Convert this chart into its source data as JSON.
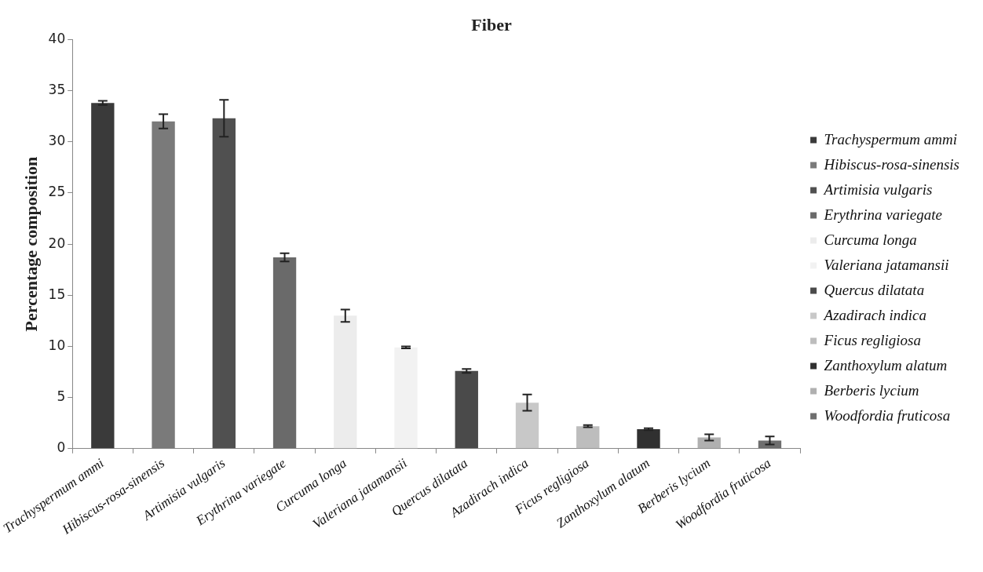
{
  "chart_data": {
    "type": "bar",
    "title": "Fiber",
    "ylabel": "Percentage composition",
    "categories": [
      "Trachyspermum ammi",
      "Hibiscus-rosa-sinensis",
      "Artimisia vulgaris",
      "Erythrina variegate",
      "Curcuma longa",
      "Valeriana jatamansii",
      "Quercus dilatata",
      "Azadirach indica",
      "Ficus regligiosa",
      "Zanthoxylum alatum",
      "Berberis lycium",
      "Woodfordia fruticosa"
    ],
    "series": [
      {
        "name": "Trachyspermum ammi",
        "color": "#3a3a3a",
        "values": [
          33.8,
          null,
          null,
          null,
          null,
          null,
          null,
          null,
          null,
          null,
          null,
          null
        ],
        "errors": [
          0.2,
          null,
          null,
          null,
          null,
          null,
          null,
          null,
          null,
          null,
          null,
          null
        ]
      },
      {
        "name": "Hibiscus-rosa-sinensis",
        "color": "#7a7a7a",
        "values": [
          null,
          32,
          null,
          null,
          null,
          null,
          null,
          null,
          null,
          null,
          null,
          null
        ],
        "errors": [
          null,
          0.7,
          null,
          null,
          null,
          null,
          null,
          null,
          null,
          null,
          null,
          null
        ]
      },
      {
        "name": "Artimisia vulgaris",
        "color": "#505050",
        "values": [
          null,
          null,
          32.3,
          null,
          null,
          null,
          null,
          null,
          null,
          null,
          null,
          null
        ],
        "errors": [
          null,
          null,
          1.8,
          null,
          null,
          null,
          null,
          null,
          null,
          null,
          null,
          null
        ]
      },
      {
        "name": "Erythrina variegate",
        "color": "#6a6a6a",
        "values": [
          null,
          null,
          null,
          18.7,
          null,
          null,
          null,
          null,
          null,
          null,
          null,
          null
        ],
        "errors": [
          null,
          null,
          null,
          0.4,
          null,
          null,
          null,
          null,
          null,
          null,
          null,
          null
        ]
      },
      {
        "name": "Curcuma longa",
        "color": "#ececec",
        "values": [
          null,
          null,
          null,
          null,
          13,
          null,
          null,
          null,
          null,
          null,
          null,
          null
        ],
        "errors": [
          null,
          null,
          null,
          null,
          0.6,
          null,
          null,
          null,
          null,
          null,
          null,
          null
        ]
      },
      {
        "name": "Valeriana jatamansii",
        "color": "#f2f2f2",
        "values": [
          null,
          null,
          null,
          null,
          null,
          9.9,
          null,
          null,
          null,
          null,
          null,
          null
        ],
        "errors": [
          null,
          null,
          null,
          null,
          null,
          0.1,
          null,
          null,
          null,
          null,
          null,
          null
        ]
      },
      {
        "name": "Quercus dilatata",
        "color": "#4a4a4a",
        "values": [
          null,
          null,
          null,
          null,
          null,
          null,
          7.6,
          null,
          null,
          null,
          null,
          null
        ],
        "errors": [
          null,
          null,
          null,
          null,
          null,
          null,
          0.2,
          null,
          null,
          null,
          null,
          null
        ]
      },
      {
        "name": "Azadirach indica",
        "color": "#c8c8c8",
        "values": [
          null,
          null,
          null,
          null,
          null,
          null,
          null,
          4.5,
          null,
          null,
          null,
          null
        ],
        "errors": [
          null,
          null,
          null,
          null,
          null,
          null,
          null,
          0.8,
          null,
          null,
          null,
          null
        ]
      },
      {
        "name": "Ficus regligiosa",
        "color": "#bdbdbd",
        "values": [
          null,
          null,
          null,
          null,
          null,
          null,
          null,
          null,
          2.2,
          null,
          null,
          null
        ],
        "errors": [
          null,
          null,
          null,
          null,
          null,
          null,
          null,
          null,
          0.1,
          null,
          null,
          null
        ]
      },
      {
        "name": "Zanthoxylum alatum",
        "color": "#303030",
        "values": [
          null,
          null,
          null,
          null,
          null,
          null,
          null,
          null,
          null,
          1.9,
          null,
          null
        ],
        "errors": [
          null,
          null,
          null,
          null,
          null,
          null,
          null,
          null,
          null,
          0.1,
          null,
          null
        ]
      },
      {
        "name": "Berberis lycium",
        "color": "#b0b0b0",
        "values": [
          null,
          null,
          null,
          null,
          null,
          null,
          null,
          null,
          null,
          null,
          1.1,
          null
        ],
        "errors": [
          null,
          null,
          null,
          null,
          null,
          null,
          null,
          null,
          null,
          null,
          0.3,
          null
        ]
      },
      {
        "name": "Woodfordia fruticosa",
        "color": "#6e6e6e",
        "values": [
          null,
          null,
          null,
          null,
          null,
          null,
          null,
          null,
          null,
          null,
          null,
          0.8
        ],
        "errors": [
          null,
          null,
          null,
          null,
          null,
          null,
          null,
          null,
          null,
          null,
          null,
          0.4
        ]
      }
    ],
    "ylim": [
      0,
      40
    ],
    "yticks": [
      0,
      5,
      10,
      15,
      20,
      25,
      30,
      35,
      40
    ],
    "grid": false,
    "legend": "right"
  }
}
